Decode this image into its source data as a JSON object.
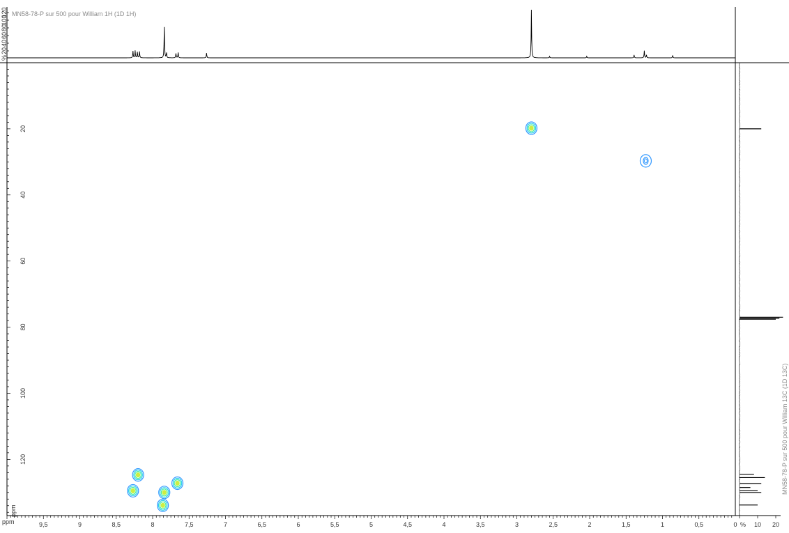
{
  "chart_data": {
    "type": "scatter",
    "subtype": "2D NMR HSQC contour plot with 1D projections",
    "top_projection": {
      "title": "MN58-78-P sur 500 pour William 1H (1D 1H)",
      "y_tick_labels": [
        "%",
        "20",
        "40",
        "60",
        "80",
        "100",
        "120"
      ],
      "peaks": [
        {
          "ppm": 8.27,
          "height": 14
        },
        {
          "ppm": 8.24,
          "height": 15
        },
        {
          "ppm": 8.21,
          "height": 12
        },
        {
          "ppm": 8.18,
          "height": 13
        },
        {
          "ppm": 7.84,
          "height": 64
        },
        {
          "ppm": 7.81,
          "height": 10
        },
        {
          "ppm": 7.68,
          "height": 9
        },
        {
          "ppm": 7.65,
          "height": 11
        },
        {
          "ppm": 7.26,
          "height": 10
        },
        {
          "ppm": 2.8,
          "height": 100
        },
        {
          "ppm": 2.55,
          "height": 3
        },
        {
          "ppm": 2.04,
          "height": 3
        },
        {
          "ppm": 1.39,
          "height": 6
        },
        {
          "ppm": 1.25,
          "height": 15
        },
        {
          "ppm": 1.22,
          "height": 6
        },
        {
          "ppm": 0.86,
          "height": 5
        }
      ]
    },
    "right_projection": {
      "title": "MN58-78-P sur 500 pour William 13C (1D 13C)",
      "x_tick_labels": [
        "%",
        "10",
        "20"
      ],
      "peaks": [
        {
          "ppm": 20.0,
          "intensity": 12
        },
        {
          "ppm": 77.0,
          "intensity": 24
        },
        {
          "ppm": 77.3,
          "intensity": 22
        },
        {
          "ppm": 77.6,
          "intensity": 20
        },
        {
          "ppm": 124.5,
          "intensity": 8
        },
        {
          "ppm": 125.5,
          "intensity": 14
        },
        {
          "ppm": 127.3,
          "intensity": 12
        },
        {
          "ppm": 128.5,
          "intensity": 6
        },
        {
          "ppm": 129.5,
          "intensity": 10
        },
        {
          "ppm": 130.0,
          "intensity": 12
        },
        {
          "ppm": 133.8,
          "intensity": 10
        }
      ]
    },
    "x_axis": {
      "label": "ppm",
      "range": [
        10,
        0
      ],
      "tick_labels": [
        "9,5",
        "9",
        "8,5",
        "8",
        "7,5",
        "7",
        "6,5",
        "6",
        "5,5",
        "5",
        "4,5",
        "4",
        "3,5",
        "3",
        "2,5",
        "2",
        "1,5",
        "1",
        "0,5",
        "0"
      ]
    },
    "y_axis": {
      "range": [
        0,
        137
      ],
      "tick_labels": [
        "20",
        "40",
        "60",
        "80",
        "100",
        "120"
      ]
    },
    "cross_peaks": [
      {
        "x": 2.8,
        "y": 19.8,
        "level": 4
      },
      {
        "x": 1.23,
        "y": 29.7,
        "level": 1
      },
      {
        "x": 8.2,
        "y": 124.7,
        "level": 4
      },
      {
        "x": 8.27,
        "y": 129.5,
        "level": 4
      },
      {
        "x": 7.84,
        "y": 130.0,
        "level": 4
      },
      {
        "x": 7.66,
        "y": 127.2,
        "level": 4
      },
      {
        "x": 7.86,
        "y": 133.9,
        "level": 4
      }
    ],
    "colors": {
      "contour_outer": "#3399ff",
      "contour_mid": "#22ccee",
      "contour_inner": "#44ee99",
      "contour_core": "#ccee44",
      "trace": "#000000"
    }
  }
}
